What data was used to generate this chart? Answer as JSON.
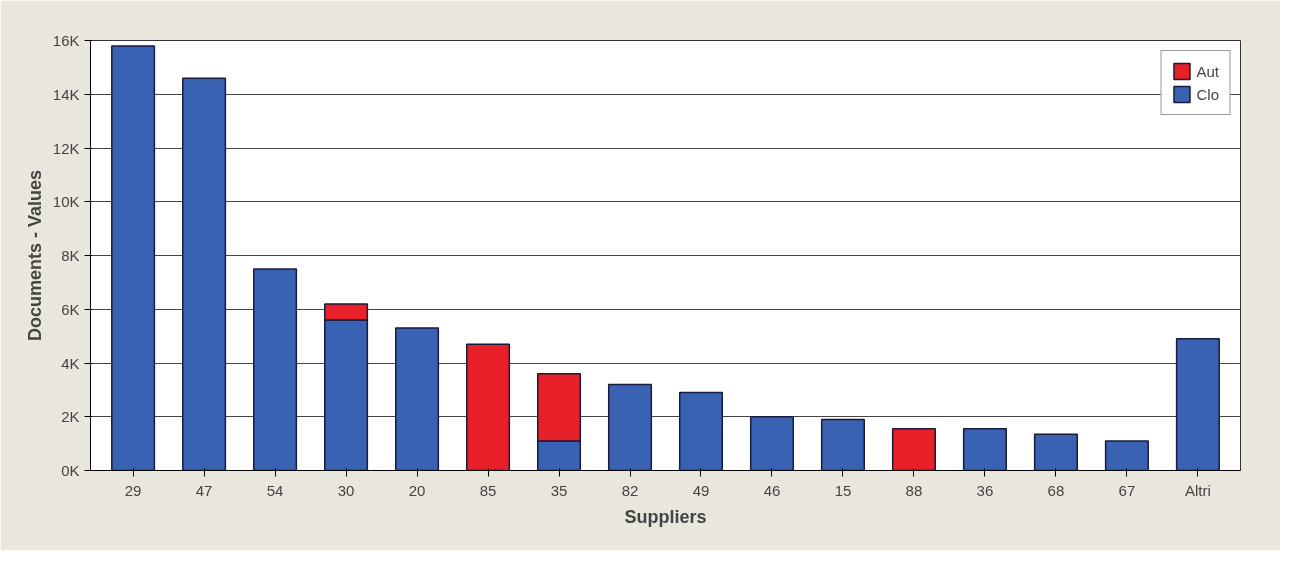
{
  "chart_data": {
    "type": "bar",
    "stacked": true,
    "xlabel": "Suppliers",
    "ylabel": "Documents - Values",
    "categories": [
      "29",
      "47",
      "54",
      "30",
      "20",
      "85",
      "35",
      "82",
      "49",
      "46",
      "15",
      "88",
      "36",
      "68",
      "67",
      "Altri"
    ],
    "series": [
      {
        "name": "Clo",
        "color": "#3a62b3",
        "values": [
          15.8,
          14.6,
          7.5,
          5.6,
          5.3,
          0,
          1.1,
          3.2,
          2.9,
          2.0,
          1.9,
          0,
          1.55,
          1.35,
          1.1,
          4.9
        ]
      },
      {
        "name": "Aut",
        "color": "#e8202a",
        "values": [
          0,
          0,
          0,
          0.6,
          0,
          4.7,
          2.5,
          0,
          0,
          0,
          0,
          1.55,
          0,
          0,
          0,
          0
        ]
      }
    ],
    "ylim": [
      0,
      16
    ],
    "yticks": [
      {
        "value": 0,
        "label": "0K"
      },
      {
        "value": 2,
        "label": "2K"
      },
      {
        "value": 4,
        "label": "4K"
      },
      {
        "value": 6,
        "label": "6K"
      },
      {
        "value": 8,
        "label": "8K"
      },
      {
        "value": 10,
        "label": "10K"
      },
      {
        "value": 12,
        "label": "12K"
      },
      {
        "value": 14,
        "label": "14K"
      },
      {
        "value": 16,
        "label": "16K"
      }
    ],
    "grid": "y",
    "legend": "top right"
  }
}
